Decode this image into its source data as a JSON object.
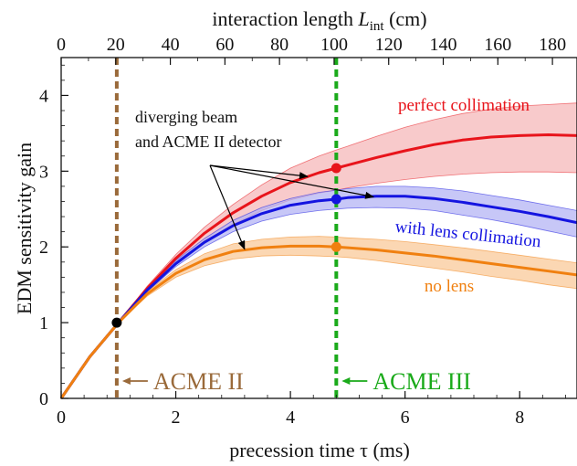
{
  "chart_data": {
    "type": "line",
    "xlabel": "precession time τ (ms)",
    "ylabel": "EDM sensitivity gain",
    "top_axis": {
      "label_prefix": "interaction length ",
      "label_var": "L",
      "label_sub": "int",
      "label_suffix": " (cm)",
      "ticks": [
        "0",
        "20",
        "40",
        "60",
        "80",
        "100",
        "120",
        "140",
        "160",
        "180"
      ],
      "cm_per_ms": 21.0
    },
    "xlim": [
      0,
      9
    ],
    "ylim": [
      0,
      4.5
    ],
    "x_ticks": [
      "0",
      "2",
      "4",
      "6",
      "8"
    ],
    "y_ticks": [
      "0",
      "1",
      "2",
      "3",
      "4"
    ],
    "grid": false,
    "series": [
      {
        "name": "perfect collimation",
        "color": "#e8141b",
        "band_color": "#f6b8ba",
        "x": [
          0,
          0.5,
          1,
          1.5,
          2,
          2.5,
          3,
          3.5,
          4,
          4.5,
          4.8,
          5,
          5.5,
          6,
          6.5,
          7,
          7.5,
          8,
          8.5,
          9
        ],
        "y": [
          0,
          0.55,
          1.0,
          1.45,
          1.85,
          2.18,
          2.45,
          2.67,
          2.85,
          2.98,
          3.04,
          3.08,
          3.18,
          3.27,
          3.35,
          3.41,
          3.45,
          3.47,
          3.48,
          3.47
        ],
        "y_low": [
          0,
          0.55,
          1.0,
          1.42,
          1.78,
          2.07,
          2.3,
          2.48,
          2.62,
          2.71,
          2.75,
          2.78,
          2.84,
          2.89,
          2.93,
          2.96,
          2.98,
          2.99,
          2.99,
          2.98
        ],
        "y_high": [
          0,
          0.55,
          1.0,
          1.48,
          1.9,
          2.26,
          2.56,
          2.82,
          3.04,
          3.2,
          3.28,
          3.33,
          3.46,
          3.58,
          3.68,
          3.76,
          3.82,
          3.86,
          3.88,
          3.9
        ]
      },
      {
        "name": "with lens collimation",
        "color": "#1414e0",
        "band_color": "#b4b4f4",
        "x": [
          0,
          0.5,
          1,
          1.5,
          2,
          2.5,
          3,
          3.5,
          4,
          4.5,
          4.8,
          5,
          5.5,
          6,
          6.5,
          7,
          7.5,
          8,
          8.5,
          9
        ],
        "y": [
          0,
          0.55,
          1.0,
          1.43,
          1.78,
          2.06,
          2.28,
          2.44,
          2.55,
          2.61,
          2.63,
          2.65,
          2.67,
          2.67,
          2.64,
          2.59,
          2.53,
          2.47,
          2.4,
          2.32
        ],
        "y_low": [
          0,
          0.55,
          1.0,
          1.41,
          1.74,
          2.0,
          2.2,
          2.34,
          2.43,
          2.48,
          2.5,
          2.51,
          2.52,
          2.51,
          2.48,
          2.42,
          2.36,
          2.29,
          2.21,
          2.13
        ],
        "y_high": [
          0,
          0.55,
          1.0,
          1.45,
          1.82,
          2.11,
          2.35,
          2.52,
          2.64,
          2.72,
          2.75,
          2.77,
          2.8,
          2.8,
          2.78,
          2.74,
          2.68,
          2.62,
          2.55,
          2.48
        ]
      },
      {
        "name": "no lens",
        "color": "#f08010",
        "band_color": "#f9c99a",
        "x": [
          0,
          0.5,
          1,
          1.5,
          2,
          2.5,
          3,
          3.5,
          4,
          4.5,
          4.8,
          5,
          5.5,
          6,
          6.5,
          7,
          7.5,
          8,
          8.5,
          9
        ],
        "y": [
          0,
          0.55,
          1.0,
          1.38,
          1.65,
          1.83,
          1.94,
          1.99,
          2.01,
          2.01,
          2.0,
          1.99,
          1.96,
          1.92,
          1.88,
          1.83,
          1.78,
          1.73,
          1.68,
          1.63
        ],
        "y_low": [
          0,
          0.55,
          1.0,
          1.35,
          1.6,
          1.75,
          1.84,
          1.88,
          1.89,
          1.88,
          1.87,
          1.86,
          1.82,
          1.77,
          1.72,
          1.67,
          1.61,
          1.56,
          1.5,
          1.45
        ],
        "y_high": [
          0,
          0.55,
          1.0,
          1.41,
          1.7,
          1.91,
          2.04,
          2.1,
          2.13,
          2.14,
          2.13,
          2.12,
          2.1,
          2.07,
          2.03,
          1.99,
          1.94,
          1.89,
          1.84,
          1.79
        ]
      }
    ],
    "markers": [
      {
        "label": "ACME II",
        "x": 0.97,
        "color": "#9a6a3a"
      },
      {
        "label": "ACME III",
        "x": 4.8,
        "color": "#1aaa1a"
      }
    ],
    "points": [
      {
        "x": 0.97,
        "y": 1.0,
        "color": "#000000"
      },
      {
        "x": 4.8,
        "y": 3.04,
        "color": "#e8141b"
      },
      {
        "x": 4.8,
        "y": 2.63,
        "color": "#1414e0"
      },
      {
        "x": 4.8,
        "y": 2.0,
        "color": "#f08010"
      }
    ],
    "annotation": {
      "lines": [
        "diverging beam",
        "and ACME II detector"
      ],
      "arrow_targets": [
        {
          "x": 4.3,
          "y": 2.93
        },
        {
          "x": 5.45,
          "y": 2.66
        },
        {
          "x": 3.2,
          "y": 1.97
        }
      ]
    }
  }
}
